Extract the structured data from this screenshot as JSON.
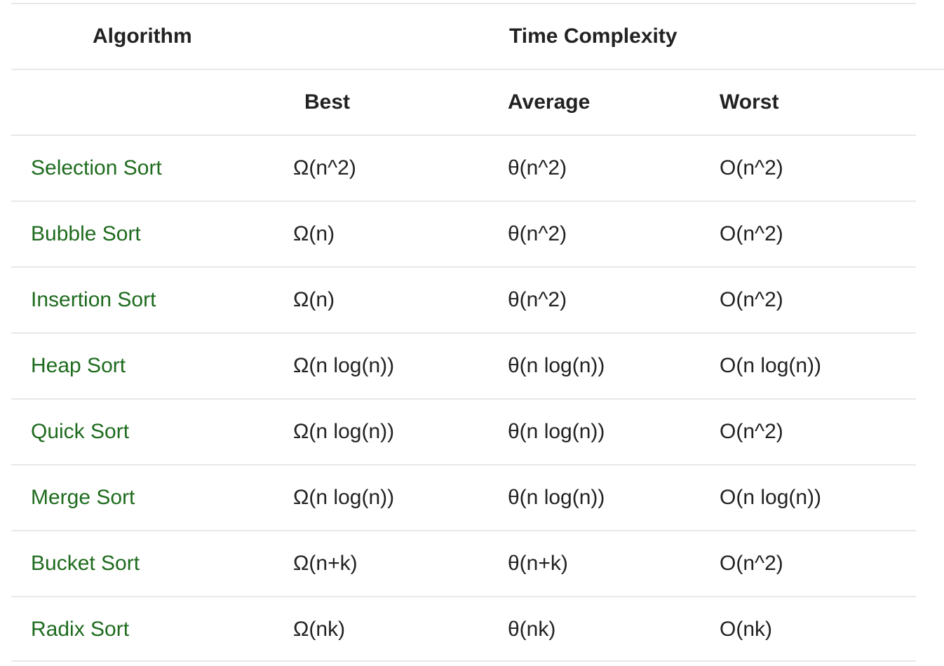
{
  "table": {
    "header": {
      "algorithm": "Algorithm",
      "time_complexity": "Time Complexity"
    },
    "subheader": {
      "best": "Best",
      "average": "Average",
      "worst": "Worst"
    },
    "rows": [
      {
        "algorithm": "Selection Sort",
        "best": "Ω(n^2)",
        "average": "θ(n^2)",
        "worst": "O(n^2)"
      },
      {
        "algorithm": "Bubble Sort",
        "best": "Ω(n)",
        "average": "θ(n^2)",
        "worst": "O(n^2)"
      },
      {
        "algorithm": "Insertion Sort",
        "best": "Ω(n)",
        "average": "θ(n^2)",
        "worst": "O(n^2)"
      },
      {
        "algorithm": "Heap Sort",
        "best": "Ω(n log(n))",
        "average": "θ(n log(n))",
        "worst": "O(n log(n))"
      },
      {
        "algorithm": "Quick Sort",
        "best": "Ω(n log(n))",
        "average": "θ(n log(n))",
        "worst": "O(n^2)"
      },
      {
        "algorithm": "Merge Sort",
        "best": "Ω(n log(n))",
        "average": "θ(n log(n))",
        "worst": "O(n log(n))"
      },
      {
        "algorithm": "Bucket Sort",
        "best": "Ω(n+k)",
        "average": "θ(n+k)",
        "worst": "O(n^2)"
      },
      {
        "algorithm": "Radix Sort",
        "best": "Ω(nk)",
        "average": "θ(nk)",
        "worst": "O(nk)"
      }
    ]
  },
  "colors": {
    "link": "#1e6b1e",
    "text": "#222222",
    "divider": "#e8e8e8"
  }
}
